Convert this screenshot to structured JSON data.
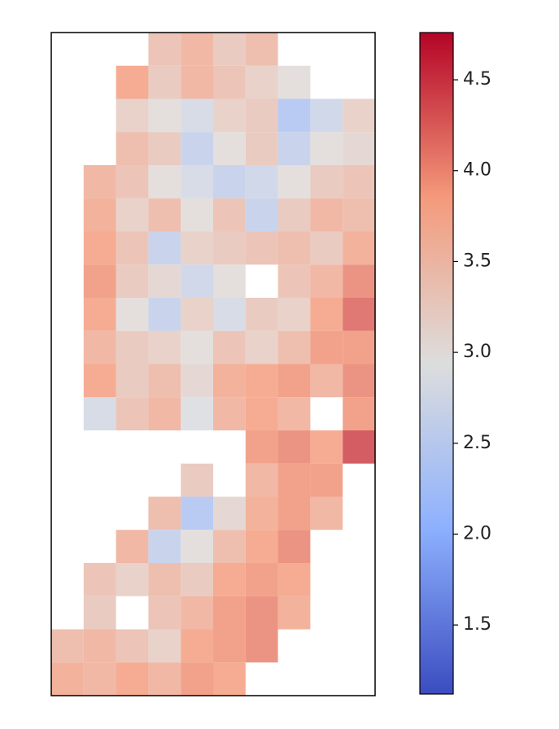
{
  "chart_data": {
    "type": "heatmap",
    "colormap": "coolwarm",
    "values": [
      [
        null,
        null,
        null,
        3.4,
        3.6,
        3.3,
        3.5,
        null,
        null,
        null
      ],
      [
        null,
        null,
        3.8,
        3.3,
        3.6,
        3.4,
        3.2,
        3.0,
        null,
        null
      ],
      [
        null,
        null,
        3.2,
        3.0,
        2.8,
        3.2,
        3.3,
        2.4,
        2.7,
        3.2
      ],
      [
        null,
        null,
        3.5,
        3.3,
        2.6,
        3.0,
        3.3,
        2.6,
        3.0,
        3.1
      ],
      [
        null,
        3.6,
        3.4,
        3.0,
        2.8,
        2.6,
        2.7,
        3.0,
        3.3,
        3.4
      ],
      [
        null,
        3.7,
        3.2,
        3.5,
        3.0,
        3.4,
        2.6,
        3.3,
        3.6,
        3.5
      ],
      [
        null,
        3.8,
        3.4,
        2.6,
        3.2,
        3.3,
        3.4,
        3.5,
        3.3,
        3.7
      ],
      [
        null,
        3.9,
        3.3,
        3.1,
        2.7,
        3.0,
        null,
        3.4,
        3.6,
        4.0
      ],
      [
        null,
        3.8,
        3.0,
        2.6,
        3.2,
        2.8,
        3.3,
        3.2,
        3.8,
        4.2
      ],
      [
        null,
        3.6,
        3.3,
        3.2,
        3.0,
        3.4,
        3.2,
        3.5,
        3.9,
        3.9
      ],
      [
        null,
        3.8,
        3.3,
        3.5,
        3.1,
        3.7,
        3.8,
        3.9,
        3.6,
        4.0
      ],
      [
        null,
        2.8,
        3.4,
        3.6,
        2.9,
        3.6,
        3.8,
        3.6,
        null,
        3.9
      ],
      [
        null,
        null,
        null,
        null,
        null,
        null,
        3.9,
        4.0,
        3.8,
        4.4
      ],
      [
        null,
        null,
        null,
        null,
        3.3,
        null,
        3.6,
        3.9,
        3.9,
        null
      ],
      [
        null,
        null,
        null,
        3.5,
        2.4,
        3.1,
        3.7,
        3.9,
        3.6,
        null
      ],
      [
        null,
        null,
        3.6,
        2.6,
        3.0,
        3.5,
        3.8,
        4.0,
        null,
        null
      ],
      [
        null,
        3.4,
        3.2,
        3.5,
        3.3,
        3.8,
        3.9,
        3.8,
        null,
        null
      ],
      [
        null,
        3.3,
        null,
        3.4,
        3.6,
        3.9,
        4.0,
        3.7,
        null,
        null
      ],
      [
        3.5,
        3.6,
        3.4,
        3.2,
        3.8,
        3.9,
        4.0,
        null,
        null,
        null
      ],
      [
        3.7,
        3.6,
        3.8,
        3.6,
        3.9,
        3.8,
        null,
        null,
        null,
        null
      ]
    ],
    "clim": [
      1.12,
      4.76
    ],
    "cticks": [
      1.5,
      {
        "value": 2,
        "label": "2.0"
      },
      2.5,
      {
        "value": 3,
        "label": "3.0"
      },
      3.5,
      {
        "value": 4,
        "label": "4.0"
      },
      4.5
    ]
  }
}
